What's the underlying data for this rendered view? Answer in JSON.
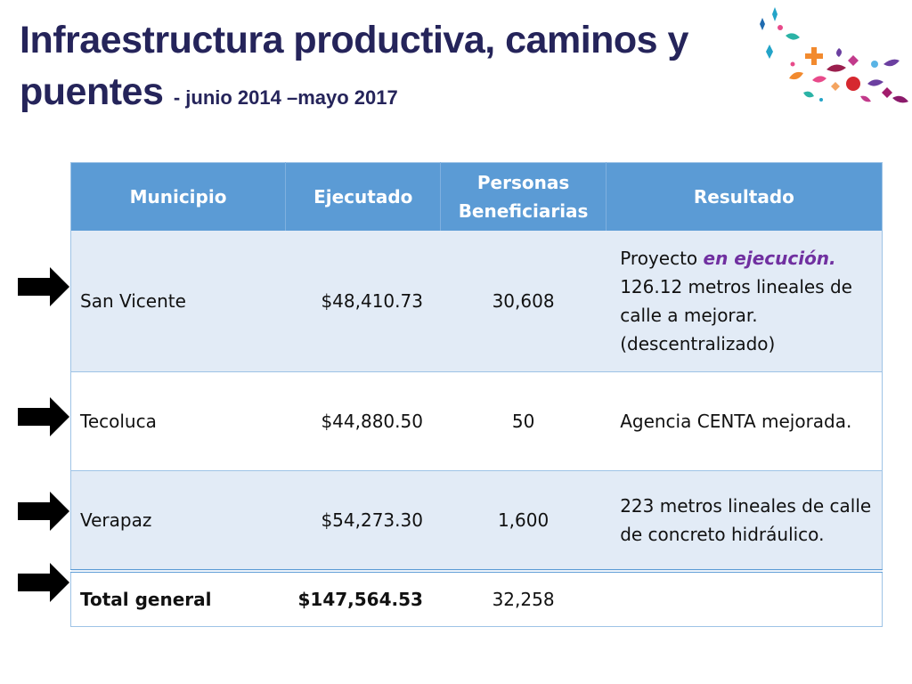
{
  "slide": {
    "title_main": "Infraestructura productiva, caminos y puentes",
    "title_sub": "-  junio 2014 –mayo 2017"
  },
  "table": {
    "headers": {
      "municipio": "Municipio",
      "ejecutado": "Ejecutado",
      "personas": "Personas Beneficiarias",
      "resultado": "Resultado"
    },
    "rows": [
      {
        "municipio": "San Vicente",
        "ejecutado": "$48,410.73",
        "personas": "30,608",
        "resultado_pre": "Proyecto ",
        "resultado_highlight": "en ejecución.",
        "resultado_post": "126.12 metros lineales de calle a mejorar. (descentralizado)"
      },
      {
        "municipio": "Tecoluca",
        "ejecutado": "$44,880.50",
        "personas": "50",
        "resultado": "Agencia CENTA mejorada."
      },
      {
        "municipio": "Verapaz",
        "ejecutado": "$54,273.30",
        "personas": "1,600",
        "resultado": "223 metros lineales de calle de concreto hidráulico."
      }
    ],
    "total": {
      "municipio": "Total general",
      "ejecutado": "$147,564.53",
      "personas": "32,258",
      "resultado": ""
    }
  },
  "colors": {
    "title": "#25245a",
    "header_bg": "#5b9bd5",
    "band_row": "#e2ebf6",
    "highlight": "#7030a0"
  },
  "icons": {
    "row_marker": "right-arrow-icon",
    "decoration": "confetti-decoration"
  }
}
